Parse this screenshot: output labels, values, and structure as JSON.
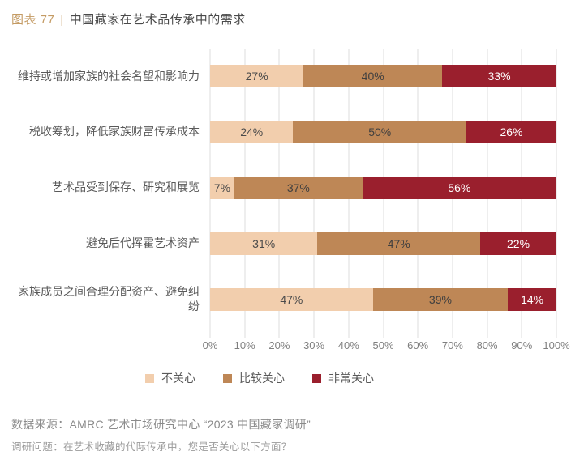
{
  "header": {
    "tag": "图表 77",
    "separator": "|",
    "title": "中国藏家在艺术品传承中的需求",
    "tag_color": "#c49b64"
  },
  "chart_data": {
    "type": "bar",
    "subtype": "horizontal_stacked",
    "title": "中国藏家在艺术品传承中的需求",
    "categories": [
      "维持或增加家族的社会名望和影响力",
      "税收筹划，降低家族财富传承成本",
      "艺术品受到保存、研究和展览",
      "避免后代挥霍艺术资产",
      "家族成员之间合理分配资产、避免纠纷"
    ],
    "series": [
      {
        "name": "不关心",
        "color": "#f2cead",
        "label_color": "#4a4a4a",
        "values": [
          27,
          24,
          7,
          31,
          47
        ]
      },
      {
        "name": "比较关心",
        "color": "#be8756",
        "label_color": "#3f3f3f",
        "values": [
          40,
          50,
          37,
          47,
          39
        ]
      },
      {
        "name": "非常关心",
        "color": "#9a1f2d",
        "label_color": "#ffffff",
        "values": [
          33,
          26,
          56,
          22,
          14
        ]
      }
    ],
    "value_suffix": "%",
    "xlim": [
      0,
      100
    ],
    "x_ticks": [
      "0%",
      "10%",
      "20%",
      "30%",
      "40%",
      "50%",
      "60%",
      "70%",
      "80%",
      "90%",
      "100%"
    ],
    "grid": true,
    "legend_position": "bottom"
  },
  "footer": {
    "source": "数据来源：AMRC 艺术市场研究中心 “2023 中国藏家调研”",
    "question": "调研问题：在艺术收藏的代际传承中，您是否关心以下方面？"
  }
}
